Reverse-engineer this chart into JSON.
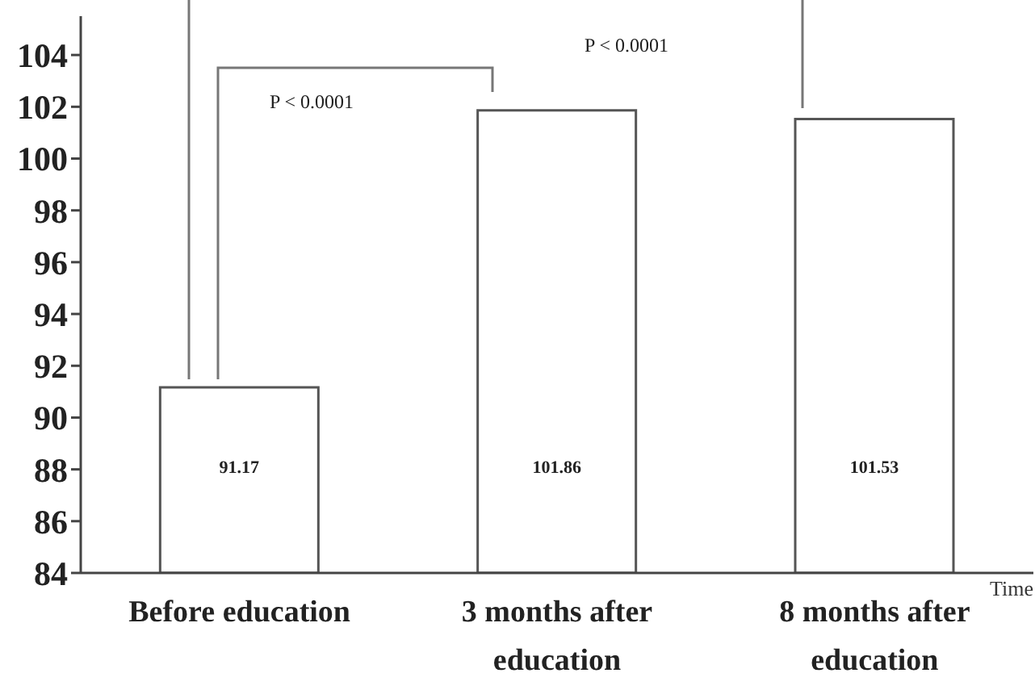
{
  "chart_data": {
    "type": "bar",
    "xlabel": "Time",
    "categories": [
      "Before education",
      "3 months after education",
      "8 months after education"
    ],
    "values": [
      91.17,
      101.86,
      101.53
    ],
    "color": "#ffffff",
    "ylim": [
      84,
      105.5
    ],
    "yticks": [
      84,
      86,
      88,
      90,
      92,
      94,
      96,
      98,
      100,
      102,
      104
    ],
    "data_labels": true,
    "annotations": [
      "P < 0.0001",
      "P < 0.0001"
    ]
  }
}
